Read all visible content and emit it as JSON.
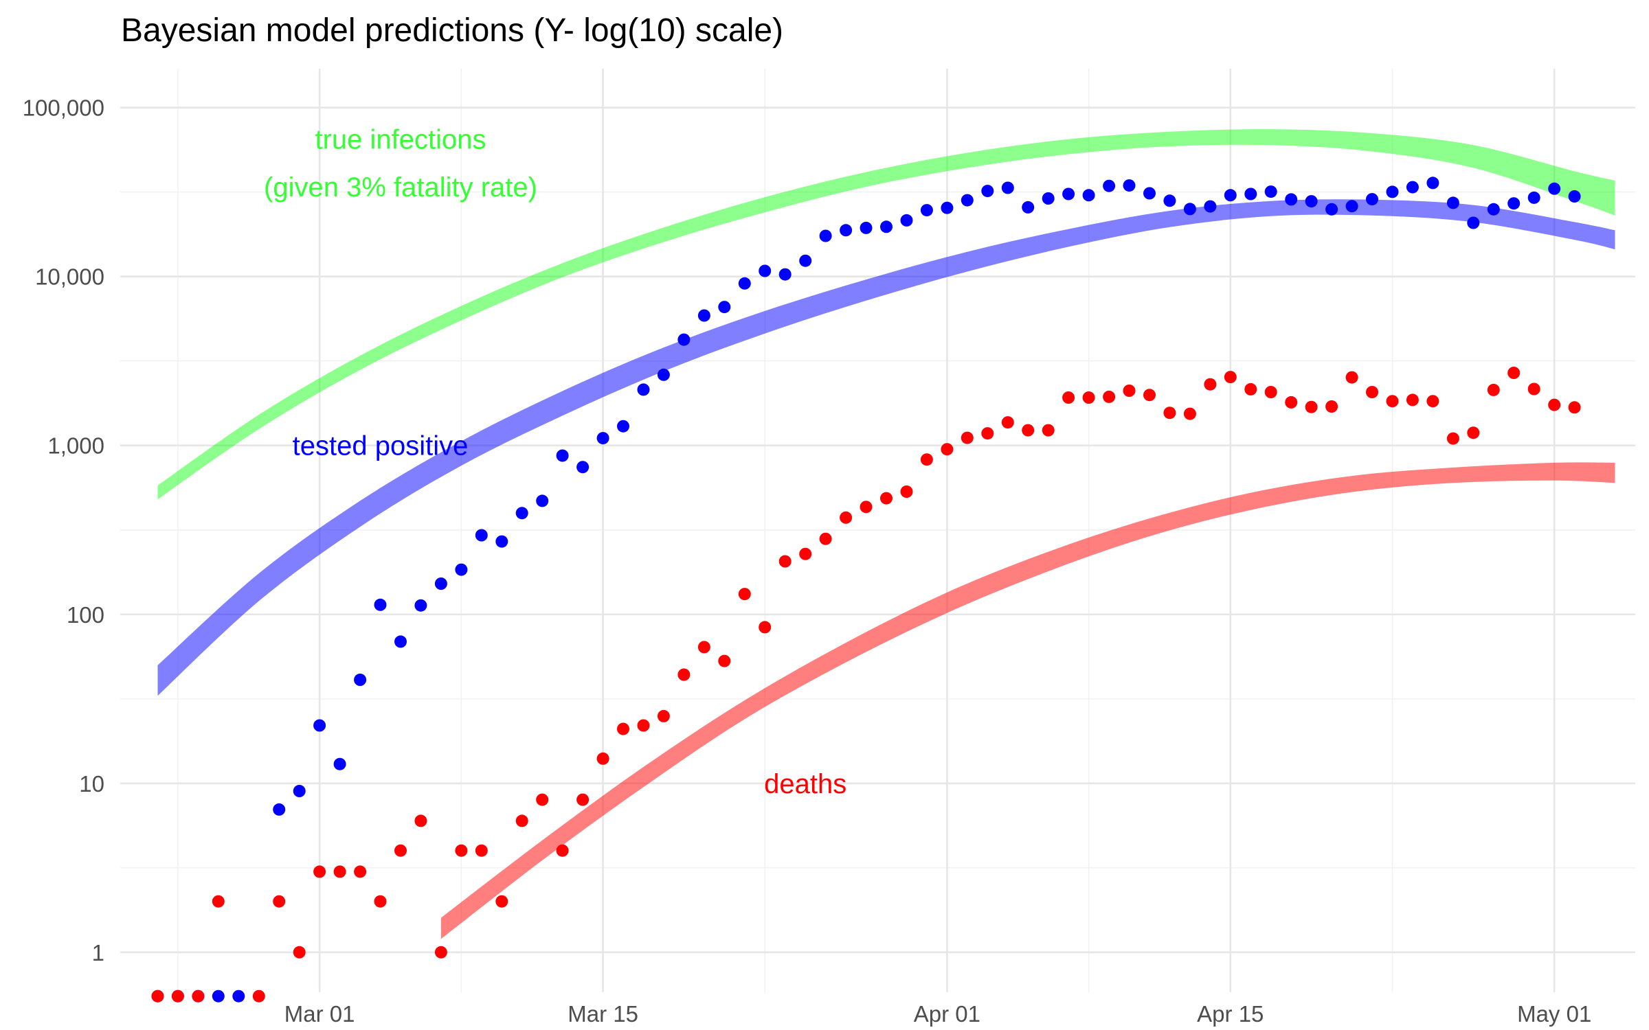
{
  "chart_data": {
    "type": "scatter",
    "title": "Bayesian model predictions (Y- log(10) scale)",
    "xlabel": "",
    "ylabel": "",
    "x_scale": "date",
    "y_scale": "log10",
    "xlim": [
      "2020-02-21",
      "2020-05-05"
    ],
    "ylim": [
      0.58,
      170000
    ],
    "grid": true,
    "x_ticks": [
      {
        "date": "2020-03-01",
        "label": "Mar 01"
      },
      {
        "date": "2020-03-15",
        "label": "Mar 15"
      },
      {
        "date": "2020-04-01",
        "label": "Apr 01"
      },
      {
        "date": "2020-04-15",
        "label": "Apr 15"
      },
      {
        "date": "2020-05-01",
        "label": "May 01"
      }
    ],
    "y_ticks": [
      {
        "value": 1,
        "label": "1"
      },
      {
        "value": 10,
        "label": "10"
      },
      {
        "value": 100,
        "label": "100"
      },
      {
        "value": 1000,
        "label": "1,000"
      },
      {
        "value": 10000,
        "label": "10,000"
      },
      {
        "value": 100000,
        "label": "100,000"
      }
    ],
    "annotations": [
      {
        "text": "true infections",
        "date": "2020-03-05",
        "value": 65000,
        "color": "#33ff33"
      },
      {
        "text": "(given 3% fatality rate)",
        "date": "2020-03-05",
        "value": 34000,
        "color": "#33ff33"
      },
      {
        "text": "tested positive",
        "date": "2020-03-04",
        "value": 1000,
        "color": "#0000ff"
      },
      {
        "text": "deaths",
        "date": "2020-03-25",
        "value": 10,
        "color": "#ff0000"
      }
    ],
    "bands": [
      {
        "color": "#00ff00",
        "opacity": 0.45,
        "x": [
          "2020-02-22",
          "2020-02-27",
          "2020-03-03",
          "2020-03-08",
          "2020-03-13",
          "2020-03-18",
          "2020-03-23",
          "2020-03-28",
          "2020-04-02",
          "2020-04-07",
          "2020-04-12",
          "2020-04-17",
          "2020-04-22",
          "2020-04-27",
          "2020-05-02",
          "2020-05-04"
        ],
        "lower": [
          480,
          1250,
          2800,
          5500,
          9900,
          16000,
          24000,
          34000,
          44000,
          53000,
          59000,
          60000,
          55000,
          44000,
          28000,
          23000
        ],
        "upper": [
          580,
          1520,
          3400,
          6700,
          12000,
          19500,
          29500,
          41500,
          54000,
          65000,
          72000,
          74500,
          70500,
          60000,
          42000,
          37000
        ]
      },
      {
        "color": "#0000ff",
        "opacity": 0.5,
        "x": [
          "2020-02-22",
          "2020-02-27",
          "2020-03-03",
          "2020-03-08",
          "2020-03-13",
          "2020-03-18",
          "2020-03-23",
          "2020-03-28",
          "2020-04-02",
          "2020-04-07",
          "2020-04-12",
          "2020-04-17",
          "2020-04-22",
          "2020-04-27",
          "2020-05-02",
          "2020-05-04"
        ],
        "lower": [
          33,
          120,
          330,
          760,
          1500,
          2750,
          4600,
          7200,
          10700,
          15000,
          19600,
          22800,
          23000,
          21000,
          16500,
          14500
        ],
        "upper": [
          50,
          175,
          470,
          1060,
          2100,
          3800,
          6250,
          9600,
          14000,
          19100,
          24500,
          28000,
          28500,
          26500,
          21000,
          18800
        ]
      },
      {
        "color": "#ff0000",
        "opacity": 0.5,
        "x": [
          "2020-03-07",
          "2020-03-12",
          "2020-03-17",
          "2020-03-22",
          "2020-03-27",
          "2020-04-01",
          "2020-04-06",
          "2020-04-11",
          "2020-04-16",
          "2020-04-21",
          "2020-04-26",
          "2020-05-01",
          "2020-05-04"
        ],
        "lower": [
          1.2,
          3.5,
          9.5,
          24,
          52,
          102,
          180,
          290,
          415,
          530,
          600,
          620,
          600
        ],
        "upper": [
          1.6,
          4.6,
          12.5,
          31,
          68,
          135,
          235,
          370,
          525,
          660,
          740,
          790,
          790
        ]
      }
    ],
    "series": [
      {
        "color": "#0000ff",
        "points": [
          [
            "2020-02-22",
            0.55
          ],
          [
            "2020-02-23",
            0.55
          ],
          [
            "2020-02-24",
            0.55
          ],
          [
            "2020-02-25",
            0.55
          ],
          [
            "2020-02-26",
            0.55
          ],
          [
            "2020-02-28",
            7
          ],
          [
            "2020-02-29",
            9
          ],
          [
            "2020-03-01",
            22
          ],
          [
            "2020-03-02",
            13
          ],
          [
            "2020-03-03",
            41
          ],
          [
            "2020-03-04",
            114
          ],
          [
            "2020-03-05",
            69
          ],
          [
            "2020-03-06",
            113
          ],
          [
            "2020-03-07",
            152
          ],
          [
            "2020-03-08",
            184
          ],
          [
            "2020-03-09",
            294
          ],
          [
            "2020-03-10",
            270
          ],
          [
            "2020-03-11",
            398
          ],
          [
            "2020-03-12",
            470
          ],
          [
            "2020-03-13",
            871
          ],
          [
            "2020-03-14",
            745
          ],
          [
            "2020-03-15",
            1105
          ],
          [
            "2020-03-16",
            1300
          ],
          [
            "2020-03-17",
            2140
          ],
          [
            "2020-03-18",
            2620
          ],
          [
            "2020-03-19",
            4230
          ],
          [
            "2020-03-20",
            5880
          ],
          [
            "2020-03-21",
            6600
          ],
          [
            "2020-03-22",
            9100
          ],
          [
            "2020-03-23",
            10800
          ],
          [
            "2020-03-24",
            10300
          ],
          [
            "2020-03-25",
            12400
          ],
          [
            "2020-03-26",
            17400
          ],
          [
            "2020-03-27",
            18800
          ],
          [
            "2020-03-28",
            19400
          ],
          [
            "2020-03-29",
            19700
          ],
          [
            "2020-03-30",
            21500
          ],
          [
            "2020-03-31",
            24700
          ],
          [
            "2020-04-01",
            25500
          ],
          [
            "2020-04-02",
            28300
          ],
          [
            "2020-04-03",
            32100
          ],
          [
            "2020-04-04",
            33500
          ],
          [
            "2020-04-05",
            25700
          ],
          [
            "2020-04-06",
            29000
          ],
          [
            "2020-04-07",
            30800
          ],
          [
            "2020-04-08",
            30300
          ],
          [
            "2020-04-09",
            34400
          ],
          [
            "2020-04-10",
            34600
          ],
          [
            "2020-04-11",
            31100
          ],
          [
            "2020-04-12",
            28100
          ],
          [
            "2020-04-13",
            25100
          ],
          [
            "2020-04-14",
            26000
          ],
          [
            "2020-04-15",
            30300
          ],
          [
            "2020-04-16",
            30800
          ],
          [
            "2020-04-17",
            31800
          ],
          [
            "2020-04-18",
            28600
          ],
          [
            "2020-04-19",
            27900
          ],
          [
            "2020-04-20",
            25000
          ],
          [
            "2020-04-21",
            26100
          ],
          [
            "2020-04-22",
            28700
          ],
          [
            "2020-04-23",
            31700
          ],
          [
            "2020-04-24",
            33800
          ],
          [
            "2020-04-25",
            35800
          ],
          [
            "2020-04-26",
            27300
          ],
          [
            "2020-04-27",
            20800
          ],
          [
            "2020-04-28",
            25000
          ],
          [
            "2020-04-29",
            27100
          ],
          [
            "2020-04-30",
            29300
          ],
          [
            "2020-05-01",
            33100
          ],
          [
            "2020-05-02",
            29800
          ]
        ]
      },
      {
        "color": "#ff0000",
        "points": [
          [
            "2020-02-22",
            0.55
          ],
          [
            "2020-02-23",
            0.55
          ],
          [
            "2020-02-24",
            0.55
          ],
          [
            "2020-02-25",
            2
          ],
          [
            "2020-02-27",
            0.55
          ],
          [
            "2020-02-28",
            2
          ],
          [
            "2020-02-29",
            1
          ],
          [
            "2020-03-01",
            3
          ],
          [
            "2020-03-02",
            3
          ],
          [
            "2020-03-03",
            3
          ],
          [
            "2020-03-04",
            2
          ],
          [
            "2020-03-05",
            4
          ],
          [
            "2020-03-06",
            6
          ],
          [
            "2020-03-07",
            1
          ],
          [
            "2020-03-08",
            4
          ],
          [
            "2020-03-09",
            4
          ],
          [
            "2020-03-10",
            2
          ],
          [
            "2020-03-11",
            6
          ],
          [
            "2020-03-12",
            8
          ],
          [
            "2020-03-13",
            4
          ],
          [
            "2020-03-14",
            8
          ],
          [
            "2020-03-15",
            14
          ],
          [
            "2020-03-16",
            21
          ],
          [
            "2020-03-17",
            22
          ],
          [
            "2020-03-18",
            25
          ],
          [
            "2020-03-19",
            44
          ],
          [
            "2020-03-20",
            64
          ],
          [
            "2020-03-21",
            53
          ],
          [
            "2020-03-22",
            132
          ],
          [
            "2020-03-23",
            84
          ],
          [
            "2020-03-24",
            206
          ],
          [
            "2020-03-25",
            228
          ],
          [
            "2020-03-26",
            280
          ],
          [
            "2020-03-27",
            374
          ],
          [
            "2020-03-28",
            433
          ],
          [
            "2020-03-29",
            487
          ],
          [
            "2020-03-30",
            533
          ],
          [
            "2020-03-31",
            826
          ],
          [
            "2020-04-01",
            950
          ],
          [
            "2020-04-02",
            1110
          ],
          [
            "2020-04-03",
            1180
          ],
          [
            "2020-04-04",
            1370
          ],
          [
            "2020-04-05",
            1230
          ],
          [
            "2020-04-06",
            1230
          ],
          [
            "2020-04-07",
            1920
          ],
          [
            "2020-04-08",
            1920
          ],
          [
            "2020-04-09",
            1940
          ],
          [
            "2020-04-10",
            2110
          ],
          [
            "2020-04-11",
            1990
          ],
          [
            "2020-04-12",
            1560
          ],
          [
            "2020-04-13",
            1540
          ],
          [
            "2020-04-14",
            2300
          ],
          [
            "2020-04-15",
            2540
          ],
          [
            "2020-04-16",
            2150
          ],
          [
            "2020-04-17",
            2070
          ],
          [
            "2020-04-18",
            1800
          ],
          [
            "2020-04-19",
            1690
          ],
          [
            "2020-04-20",
            1700
          ],
          [
            "2020-04-21",
            2530
          ],
          [
            "2020-04-22",
            2070
          ],
          [
            "2020-04-23",
            1830
          ],
          [
            "2020-04-24",
            1860
          ],
          [
            "2020-04-25",
            1830
          ],
          [
            "2020-04-26",
            1100
          ],
          [
            "2020-04-27",
            1190
          ],
          [
            "2020-04-28",
            2130
          ],
          [
            "2020-04-29",
            2690
          ],
          [
            "2020-04-30",
            2160
          ],
          [
            "2020-05-01",
            1740
          ],
          [
            "2020-05-02",
            1680
          ]
        ]
      }
    ]
  }
}
